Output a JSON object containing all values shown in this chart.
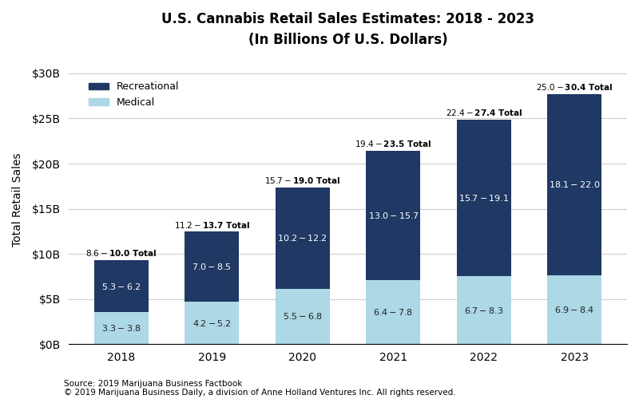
{
  "title": "U.S. Cannabis Retail Sales Estimates: 2018 - 2023",
  "subtitle": "(In Billions Of U.S. Dollars)",
  "years": [
    "2018",
    "2019",
    "2020",
    "2021",
    "2022",
    "2023"
  ],
  "medical_vals": [
    3.55,
    4.7,
    6.15,
    7.1,
    7.5,
    7.65
  ],
  "recreational_vals": [
    5.75,
    7.75,
    11.2,
    14.35,
    17.4,
    20.05
  ],
  "total_labels": [
    "$8.6-$10.0 Total",
    "$11.2-$13.7 Total",
    "$15.7-$19.0 Total",
    "$19.4-$23.5 Total",
    "$22.4-$27.4 Total",
    "$25.0-$30.4 Total"
  ],
  "medical_labels": [
    "$3.3-$3.8",
    "$4.2-$5.2",
    "$5.5-$6.8",
    "$6.4-$7.8",
    "$6.7-$8.3",
    "$6.9-$8.4"
  ],
  "recreational_labels": [
    "$5.3-$6.2",
    "$7.0-$8.5",
    "$10.2-$12.2",
    "$13.0-$15.7",
    "$15.7-$19.1",
    "$18.1-$22.0"
  ],
  "color_recreational": "#1f3864",
  "color_medical": "#add8e6",
  "ylabel": "Total Retail Sales",
  "yticks": [
    0,
    5,
    10,
    15,
    20,
    25,
    30
  ],
  "ytick_labels": [
    "$0B",
    "$5B",
    "$10B",
    "$15B",
    "$20B",
    "$25B",
    "$30B"
  ],
  "ylim": [
    0,
    32
  ],
  "source_text": "Source: 2019 Marijuana Business Factbook",
  "copyright_text": "© 2019 Marijuana Business Daily, a division of Anne Holland Ventures Inc. All rights reserved.",
  "background_color": "#ffffff",
  "bar_width": 0.6
}
